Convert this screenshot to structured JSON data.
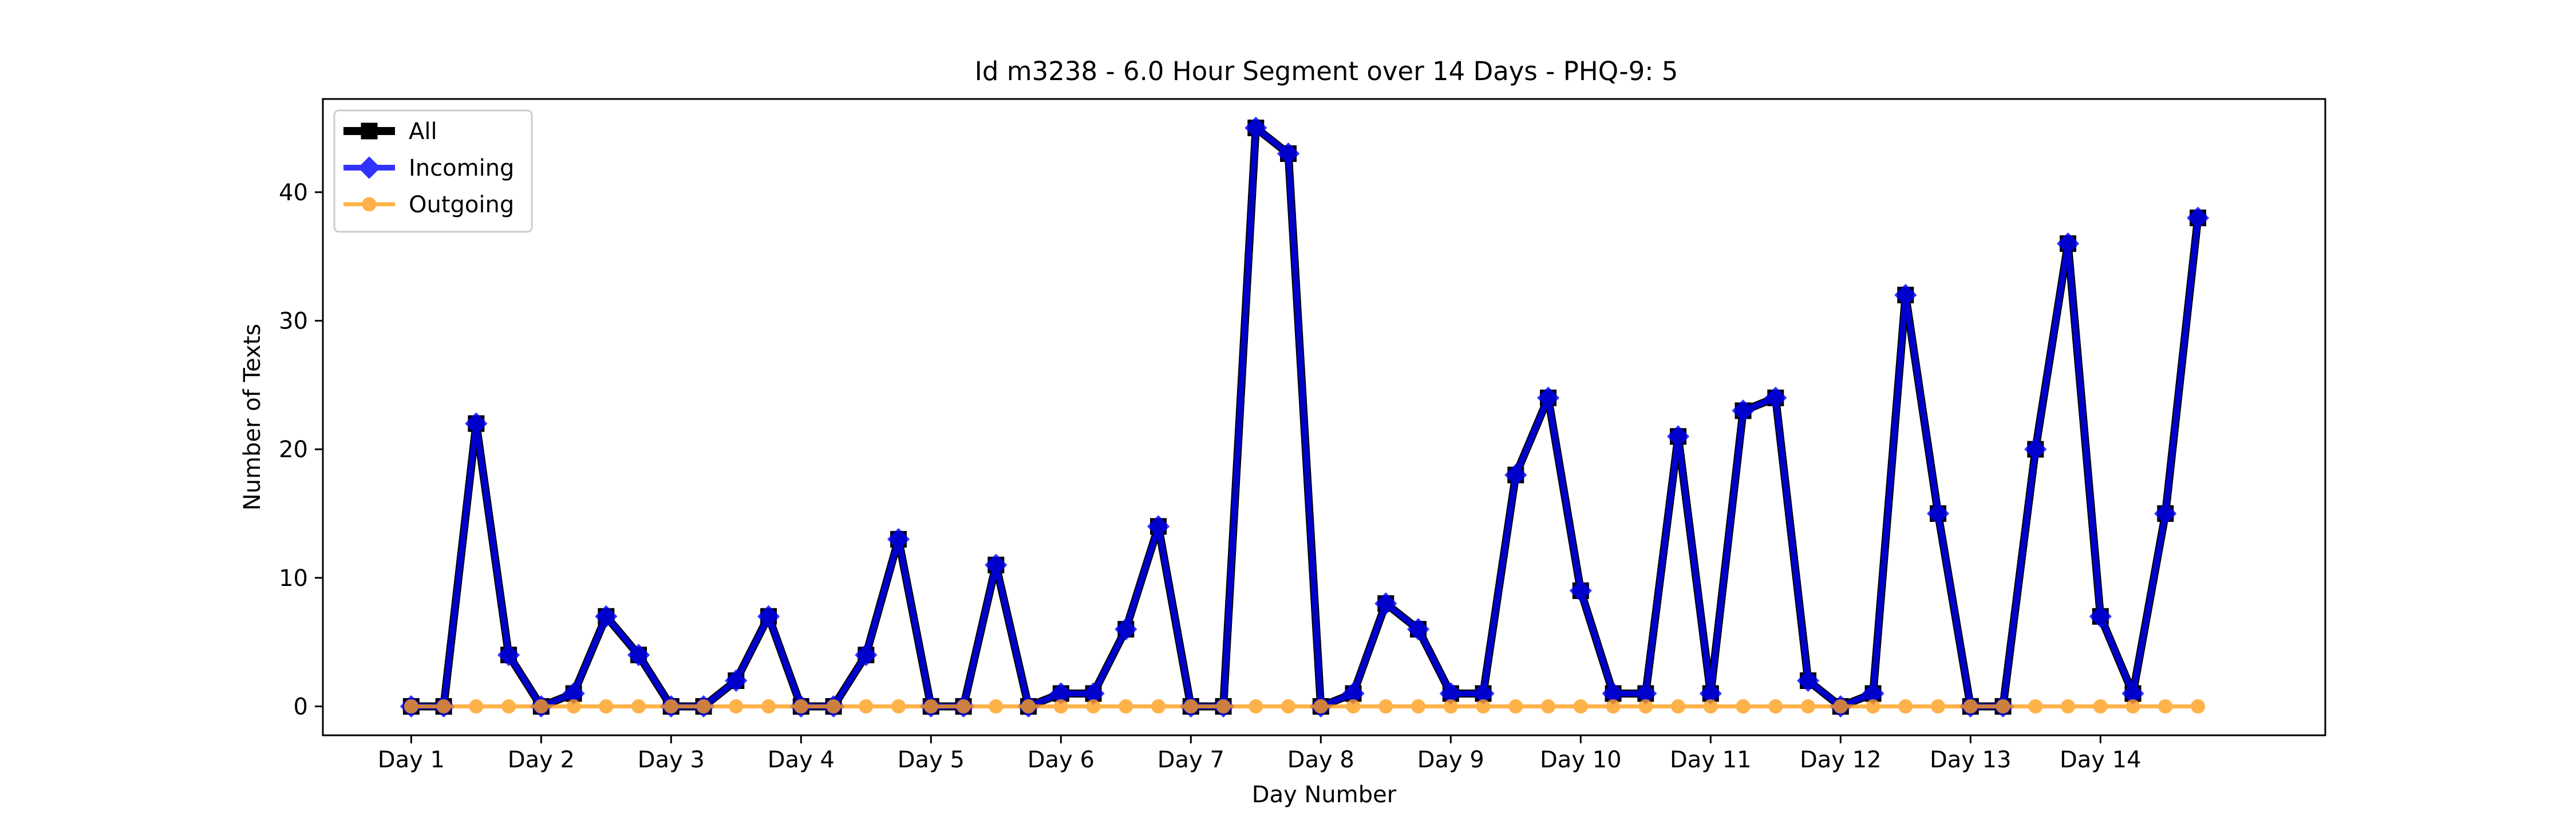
{
  "chart_data": {
    "type": "line",
    "title": "Id m3238 - 6.0 Hour Segment over 14 Days - PHQ-9: 5",
    "xlabel": "Day Number",
    "ylabel": "Number of Texts",
    "x_tick_labels": [
      "Day 1",
      "Day 2",
      "Day 3",
      "Day 4",
      "Day 5",
      "Day 6",
      "Day 7",
      "Day 8",
      "Day 9",
      "Day 10",
      "Day 11",
      "Day 12",
      "Day 13",
      "Day 14"
    ],
    "y_ticks": [
      0,
      10,
      20,
      30,
      40
    ],
    "xlim": [
      -0.68,
      14.73
    ],
    "ylim": [
      -2.25,
      47.25
    ],
    "grid": false,
    "legend_position": "top-left",
    "x": [
      0,
      0.25,
      0.5,
      0.75,
      1,
      1.25,
      1.5,
      1.75,
      2,
      2.25,
      2.5,
      2.75,
      3,
      3.25,
      3.5,
      3.75,
      4,
      4.25,
      4.5,
      4.75,
      5,
      5.25,
      5.5,
      5.75,
      6,
      6.25,
      6.5,
      6.75,
      7,
      7.25,
      7.5,
      7.75,
      8,
      8.25,
      8.5,
      8.75,
      9,
      9.25,
      9.5,
      9.75,
      10,
      10.25,
      10.5,
      10.75,
      11,
      11.25,
      11.5,
      11.75,
      12,
      12.25,
      12.5,
      12.75,
      13,
      13.25,
      13.5,
      13.75
    ],
    "series": [
      {
        "name": "All",
        "color": "#000000",
        "marker": "square",
        "values": [
          0,
          0,
          22,
          4,
          0,
          1,
          7,
          4,
          0,
          0,
          2,
          7,
          0,
          0,
          4,
          13,
          0,
          0,
          11,
          0,
          1,
          1,
          6,
          14,
          0,
          0,
          45,
          43,
          0,
          1,
          8,
          6,
          1,
          1,
          18,
          24,
          9,
          1,
          1,
          21,
          1,
          23,
          24,
          2,
          0,
          1,
          32,
          15,
          0,
          0,
          20,
          36,
          7,
          1,
          15,
          38
        ]
      },
      {
        "name": "Incoming",
        "color": "#0000ff",
        "marker": "diamond",
        "values": [
          0,
          0,
          22,
          4,
          0,
          1,
          7,
          4,
          0,
          0,
          2,
          7,
          0,
          0,
          4,
          13,
          0,
          0,
          11,
          0,
          1,
          1,
          6,
          14,
          0,
          0,
          45,
          43,
          0,
          1,
          8,
          6,
          1,
          1,
          18,
          24,
          9,
          1,
          1,
          21,
          1,
          23,
          24,
          2,
          0,
          1,
          32,
          15,
          0,
          0,
          20,
          36,
          7,
          1,
          15,
          38
        ]
      },
      {
        "name": "Outgoing",
        "color": "#ff9f1c",
        "marker": "circle",
        "values": [
          0,
          0,
          0,
          0,
          0,
          0,
          0,
          0,
          0,
          0,
          0,
          0,
          0,
          0,
          0,
          0,
          0,
          0,
          0,
          0,
          0,
          0,
          0,
          0,
          0,
          0,
          0,
          0,
          0,
          0,
          0,
          0,
          0,
          0,
          0,
          0,
          0,
          0,
          0,
          0,
          0,
          0,
          0,
          0,
          0,
          0,
          0,
          0,
          0,
          0,
          0,
          0,
          0,
          0,
          0,
          0
        ]
      }
    ]
  }
}
